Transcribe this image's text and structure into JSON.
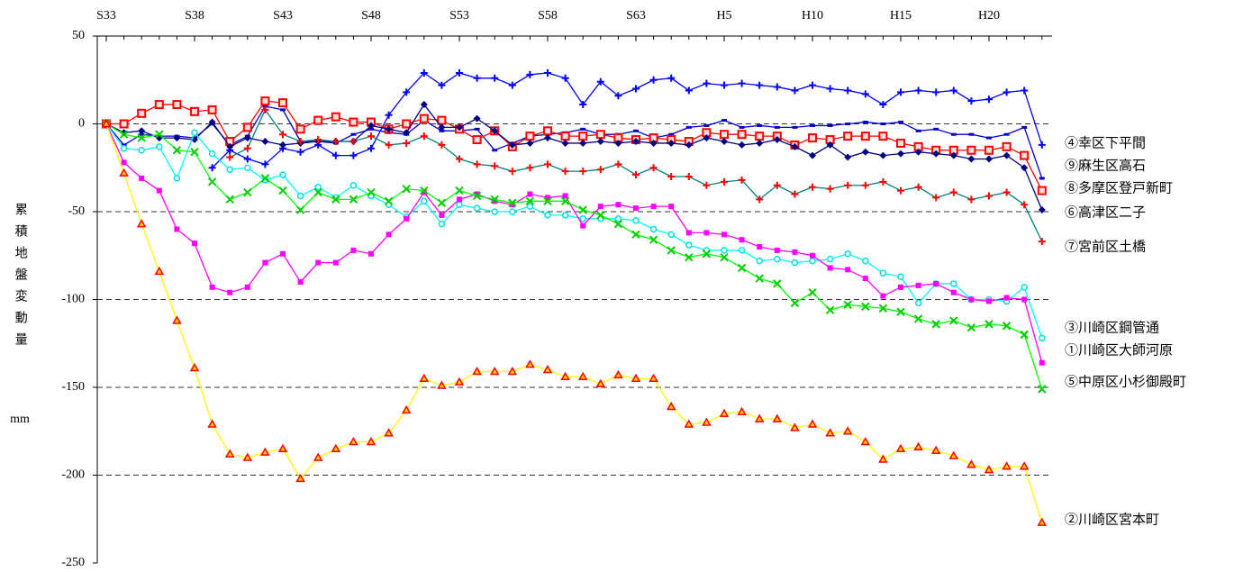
{
  "chart_data": {
    "type": "line",
    "y_label": "累積地盤変動量",
    "y_unit": "mm",
    "categories": [
      "S33",
      null,
      null,
      null,
      null,
      "S38",
      null,
      null,
      null,
      null,
      "S43",
      null,
      null,
      null,
      null,
      "S48",
      null,
      null,
      null,
      null,
      "S53",
      null,
      null,
      null,
      null,
      "S58",
      null,
      null,
      null,
      null,
      "S63",
      null,
      null,
      null,
      null,
      "H5",
      null,
      null,
      null,
      null,
      "H10",
      null,
      null,
      null,
      null,
      "H15",
      null,
      null,
      null,
      null,
      "H20",
      null,
      null,
      null
    ],
    "ylim": [
      -250,
      50
    ],
    "yticks": [
      -250,
      -200,
      -150,
      -100,
      -50,
      0,
      50
    ],
    "grid": true,
    "series": [
      {
        "name": "④幸区下平間",
        "color": "#0000ff",
        "marker": "plus",
        "marker_color": "#0000ff",
        "values": [
          null,
          null,
          null,
          null,
          null,
          null,
          -25,
          -15,
          -20,
          -23,
          -14,
          -16,
          -12,
          -18,
          -18,
          -14,
          5,
          18,
          29,
          22,
          29,
          26,
          26,
          22,
          28,
          29,
          26,
          11,
          24,
          16,
          20,
          25,
          26,
          19,
          23,
          22,
          23,
          22,
          21,
          19,
          22,
          20,
          19,
          17,
          11,
          18,
          19,
          18,
          19,
          13,
          14,
          18,
          19,
          -12
        ]
      },
      {
        "name": "⑨麻生区高石",
        "color": "#0000cc",
        "marker": "dash",
        "marker_color": "#0000cc",
        "values": [
          0,
          -12,
          -6,
          -7,
          -7,
          -8,
          0,
          -12,
          -7,
          10,
          8,
          -10,
          -10,
          -11,
          -6,
          -3,
          -5,
          -6,
          2,
          -4,
          -4,
          -3,
          -15,
          -11,
          -7,
          -6,
          -5,
          -3,
          -6,
          -6,
          -4,
          -8,
          -6,
          -2,
          -1,
          2,
          -2,
          -1,
          -2,
          -2,
          -1,
          -1,
          0,
          1,
          0,
          1,
          -4,
          -3,
          -6,
          -6,
          -8,
          -6,
          -2,
          -31
        ]
      },
      {
        "name": "⑧多摩区登戸新町",
        "color": "#ff0000",
        "marker": "square",
        "marker_color": "#ff0000",
        "values": [
          0,
          0,
          6,
          11,
          11,
          7,
          8,
          -10,
          -2,
          13,
          12,
          -3,
          2,
          4,
          1,
          1,
          -3,
          0,
          3,
          2,
          -3,
          -9,
          -4,
          -13,
          -7,
          -4,
          -7,
          -7,
          -6,
          -8,
          -9,
          -8,
          -9,
          -10,
          -5,
          -6,
          -6,
          -7,
          -7,
          -12,
          -8,
          -9,
          -7,
          -7,
          -7,
          -11,
          -13,
          -15,
          -15,
          -15,
          -15,
          -13,
          -18,
          -38
        ]
      },
      {
        "name": "⑥高津区二子",
        "color": "#000080",
        "marker": "diamond",
        "marker_color": "#000080",
        "values": [
          0,
          -5,
          -4,
          -8,
          -8,
          -9,
          1,
          -13,
          -8,
          -10,
          -12,
          -11,
          -10,
          -10,
          -10,
          -1,
          -3,
          -5,
          11,
          -2,
          -2,
          3,
          -4,
          -12,
          -11,
          -8,
          -11,
          -11,
          -10,
          -11,
          -10,
          -11,
          -11,
          -12,
          -8,
          -10,
          -12,
          -11,
          -9,
          -13,
          -18,
          -12,
          -19,
          -16,
          -18,
          -17,
          -16,
          -17,
          -18,
          -20,
          -20,
          -18,
          -25,
          -49
        ]
      },
      {
        "name": "⑦宮前区土橋",
        "color": "#008080",
        "marker": "plus",
        "marker_color": "#ff0000",
        "values": [
          null,
          null,
          null,
          null,
          null,
          null,
          null,
          -19,
          -14,
          8,
          -6,
          -10,
          -9,
          -10,
          -10,
          -7,
          -12,
          -11,
          -7,
          -12,
          -20,
          -23,
          -24,
          -27,
          -25,
          -23,
          -27,
          -27,
          -26,
          -23,
          -29,
          -25,
          -30,
          -30,
          -35,
          -33,
          -32,
          -43,
          -35,
          -40,
          -36,
          -37,
          -35,
          -35,
          -33,
          -38,
          -36,
          -42,
          -39,
          -43,
          -41,
          -39,
          -46,
          -67
        ]
      },
      {
        "name": "③川崎区鋼管通",
        "color": "#00ffff",
        "marker": "circle",
        "marker_color": "#00e0e0",
        "values": [
          0,
          -14,
          -15,
          -13,
          -31,
          -5,
          -17,
          -26,
          -25,
          -32,
          -29,
          -41,
          -36,
          -42,
          -35,
          -41,
          -46,
          -53,
          -44,
          -57,
          -46,
          -48,
          -50,
          -50,
          -47,
          -52,
          -52,
          -54,
          -54,
          -54,
          -55,
          -60,
          -63,
          -69,
          -72,
          -72,
          -72,
          -78,
          -77,
          -79,
          -78,
          -77,
          -74,
          -78,
          -85,
          -87,
          -102,
          -91,
          -91,
          -100,
          -100,
          -101,
          -93,
          -122
        ]
      },
      {
        "name": "①川崎区大師河原",
        "color": "#ff00ff",
        "marker": "filled-square",
        "marker_color": "#ff00ff",
        "values": [
          0,
          -22,
          -31,
          -38,
          -60,
          -68,
          -93,
          -96,
          -93,
          -79,
          -74,
          -90,
          -79,
          -79,
          -72,
          -74,
          -63,
          -54,
          -39,
          -52,
          -43,
          -40,
          -44,
          -46,
          -40,
          -42,
          -41,
          -58,
          -47,
          -46,
          -48,
          -47,
          -47,
          -62,
          -62,
          -63,
          -66,
          -70,
          -72,
          -73,
          -75,
          -82,
          -83,
          -88,
          -98,
          -93,
          -92,
          -91,
          -96,
          -100,
          -101,
          -99,
          -100,
          -136
        ]
      },
      {
        "name": "⑤中原区小杉御殿町",
        "color": "#00ff00",
        "marker": "cross",
        "marker_color": "#00cc00",
        "values": [
          0,
          -6,
          -8,
          -6,
          -15,
          -16,
          -33,
          -43,
          -39,
          -31,
          -38,
          -49,
          -39,
          -43,
          -43,
          -39,
          -44,
          -37,
          -38,
          -45,
          -38,
          -41,
          -43,
          -45,
          -44,
          -44,
          -44,
          -49,
          -52,
          -57,
          -63,
          -66,
          -72,
          -76,
          -74,
          -76,
          -82,
          -88,
          -91,
          -102,
          -96,
          -106,
          -103,
          -104,
          -105,
          -107,
          -111,
          -114,
          -112,
          -116,
          -114,
          -115,
          -120,
          -151
        ]
      },
      {
        "name": "②川崎区宮本町",
        "color": "#ffff00",
        "marker": "triangle",
        "marker_color": "#ff0000",
        "values": [
          0,
          -28,
          -57,
          -84,
          -112,
          -139,
          -171,
          -188,
          -190,
          -187,
          -185,
          -202,
          -190,
          -185,
          -181,
          -181,
          -176,
          -163,
          -145,
          -149,
          -147,
          -141,
          -141,
          -141,
          -137,
          -140,
          -144,
          -144,
          -148,
          -143,
          -145,
          -145,
          -161,
          -171,
          -170,
          -165,
          -164,
          -168,
          -168,
          -173,
          -171,
          -176,
          -175,
          -181,
          -191,
          -185,
          -184,
          -186,
          -189,
          -194,
          -197,
          -195,
          -195,
          -227
        ]
      }
    ]
  }
}
